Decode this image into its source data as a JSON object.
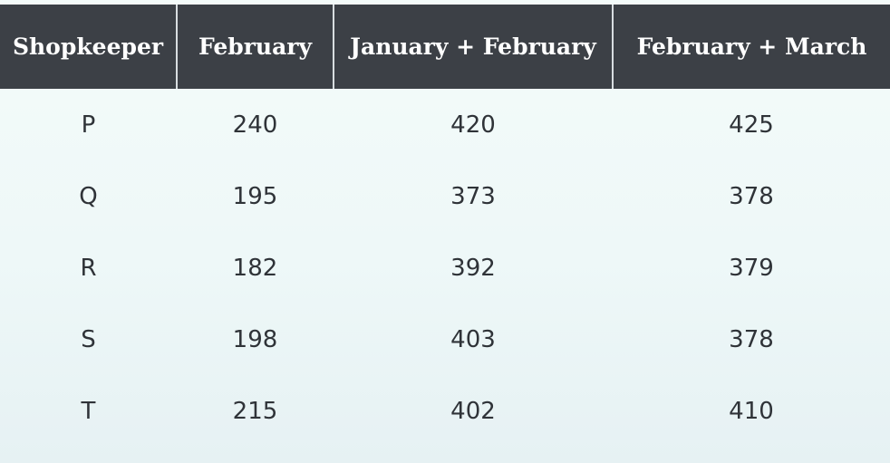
{
  "chart_data": {
    "type": "table",
    "columns": [
      "Shopkeeper",
      "February",
      "January + February",
      "February + March"
    ],
    "rows": [
      [
        "P",
        "240",
        "420",
        "425"
      ],
      [
        "Q",
        "195",
        "373",
        "378"
      ],
      [
        "R",
        "182",
        "392",
        "379"
      ],
      [
        "S",
        "198",
        "403",
        "378"
      ],
      [
        "T",
        "215",
        "402",
        "410"
      ]
    ]
  },
  "colors": {
    "header_bg": "#3c4046",
    "header_text": "#ffffff",
    "body_text": "#2f3338",
    "body_bg": "#eef8f8"
  }
}
